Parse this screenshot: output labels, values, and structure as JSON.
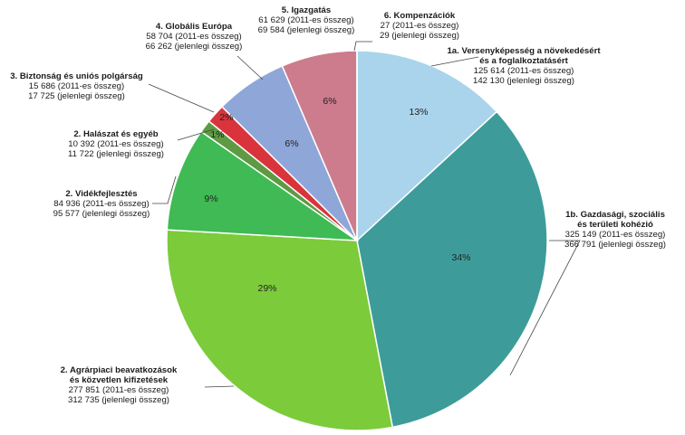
{
  "chart_data": {
    "type": "pie",
    "start_angle_deg": 0,
    "direction": "clockwise",
    "slices": [
      {
        "label": "1a. Versenyképesség a növekedésért és a foglalkoztatásért",
        "title_lines": [
          "1a. Versenyképesség a növekedésért",
          "és a foglalkoztatásért"
        ],
        "value_2011": "125 614 (2011-es összeg)",
        "value_current": "142 130 (jelenlegi összeg)",
        "value": 142130,
        "percent_label": "13%",
        "color": "#a9d4ec"
      },
      {
        "label": "1b. Gazdasági, szociális és területi kohézió",
        "title_lines": [
          "1b. Gazdasági, szociális",
          "és területi kohézió"
        ],
        "value_2011": "325 149 (2011-es összeg)",
        "value_current": "366 791 (jelenlegi összeg)",
        "value": 366791,
        "percent_label": "34%",
        "color": "#3d9c99"
      },
      {
        "label": "2. Agrárpiaci beavatkozások és közvetlen kifizetések",
        "title_lines": [
          "2. Agrárpiaci beavatkozások",
          "és közvetlen kifizetések"
        ],
        "value_2011": "277 851 (2011-es összeg)",
        "value_current": "312 735 (jelenlegi összeg)",
        "value": 312735,
        "percent_label": "29%",
        "color": "#7ccb3b"
      },
      {
        "label": "2. Vidékfejlesztés",
        "title_lines": [
          "2. Vidékfejlesztés"
        ],
        "value_2011": "84 936 (2011-es összeg)",
        "value_current": "95 577 (jelenlegi összeg)",
        "value": 95577,
        "percent_label": "9%",
        "color": "#3fba54"
      },
      {
        "label": "2. Halászat és egyéb",
        "title_lines": [
          "2. Halászat és egyéb"
        ],
        "value_2011": "10 392 (2011-es összeg)",
        "value_current": "11 722 (jelenlegi összeg)",
        "value": 11722,
        "percent_label": "1%",
        "color": "#5e9a43"
      },
      {
        "label": "3. Biztonság és uniós polgárság",
        "title_lines": [
          "3. Biztonság és uniós polgárság"
        ],
        "value_2011": "15 686 (2011-es összeg)",
        "value_current": "17 725 (jelenlegi összeg)",
        "value": 17725,
        "percent_label": "2%",
        "color": "#d9343c"
      },
      {
        "label": "4. Globális Európa",
        "title_lines": [
          "4. Globális Európa"
        ],
        "value_2011": "58 704 (2011-es összeg)",
        "value_current": "66 262 (jelenlegi összeg)",
        "value": 66262,
        "percent_label": "6%",
        "color": "#8fa6d8"
      },
      {
        "label": "5. Igazgatás",
        "title_lines": [
          "5. Igazgatás"
        ],
        "value_2011": "61 629 (2011-es összeg)",
        "value_current": "69 584 (jelenlegi összeg)",
        "value": 69584,
        "percent_label": "6%",
        "color": "#cc7c8c"
      },
      {
        "label": "6. Kompenzációk",
        "title_lines": [
          "6. Kompenzációk"
        ],
        "value_2011": "27 (2011-es összeg)",
        "value_current": "29 (jelenlegi összeg)",
        "value": 29,
        "percent_label": "",
        "color": "#e8a0ac"
      }
    ]
  }
}
